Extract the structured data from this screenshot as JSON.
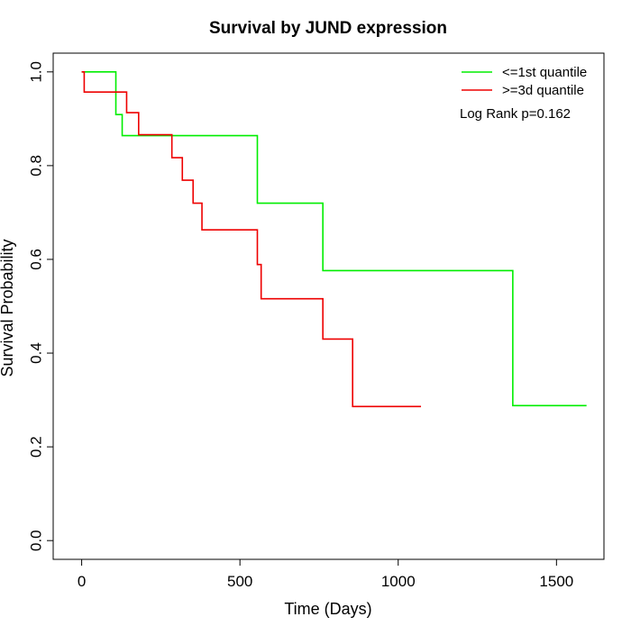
{
  "chart_data": {
    "type": "line",
    "title": "Survival by JUND expression",
    "xlabel": "Time (Days)",
    "ylabel": "Survival Probability",
    "xlim": [
      -90,
      1650
    ],
    "ylim": [
      -0.04,
      1.04
    ],
    "x_ticks": [
      0,
      500,
      1000,
      1500
    ],
    "x_tick_labels": [
      "0",
      "500",
      "1000",
      "1500"
    ],
    "y_ticks": [
      0.0,
      0.2,
      0.4,
      0.6,
      0.8,
      1.0
    ],
    "y_tick_labels": [
      "0.0",
      "0.2",
      "0.4",
      "0.6",
      "0.8",
      "1.0"
    ],
    "grid": false,
    "legend_position": "top-right",
    "annotation": "Log Rank p=0.162",
    "series": [
      {
        "name": "<=1st quantile",
        "color": "#00ee00",
        "step_x": [
          0,
          108,
          128,
          555,
          762,
          1362,
          1595
        ],
        "step_y": [
          1.0,
          0.909,
          0.864,
          0.72,
          0.576,
          0.288,
          0.288
        ]
      },
      {
        "name": ">=3d quantile",
        "color": "#ee0000",
        "step_x": [
          0,
          8,
          142,
          180,
          285,
          318,
          352,
          380,
          555,
          567,
          762,
          856,
          1072
        ],
        "step_y": [
          1.0,
          0.957,
          0.913,
          0.866,
          0.817,
          0.769,
          0.72,
          0.663,
          0.589,
          0.516,
          0.43,
          0.286,
          0.286
        ]
      }
    ]
  }
}
